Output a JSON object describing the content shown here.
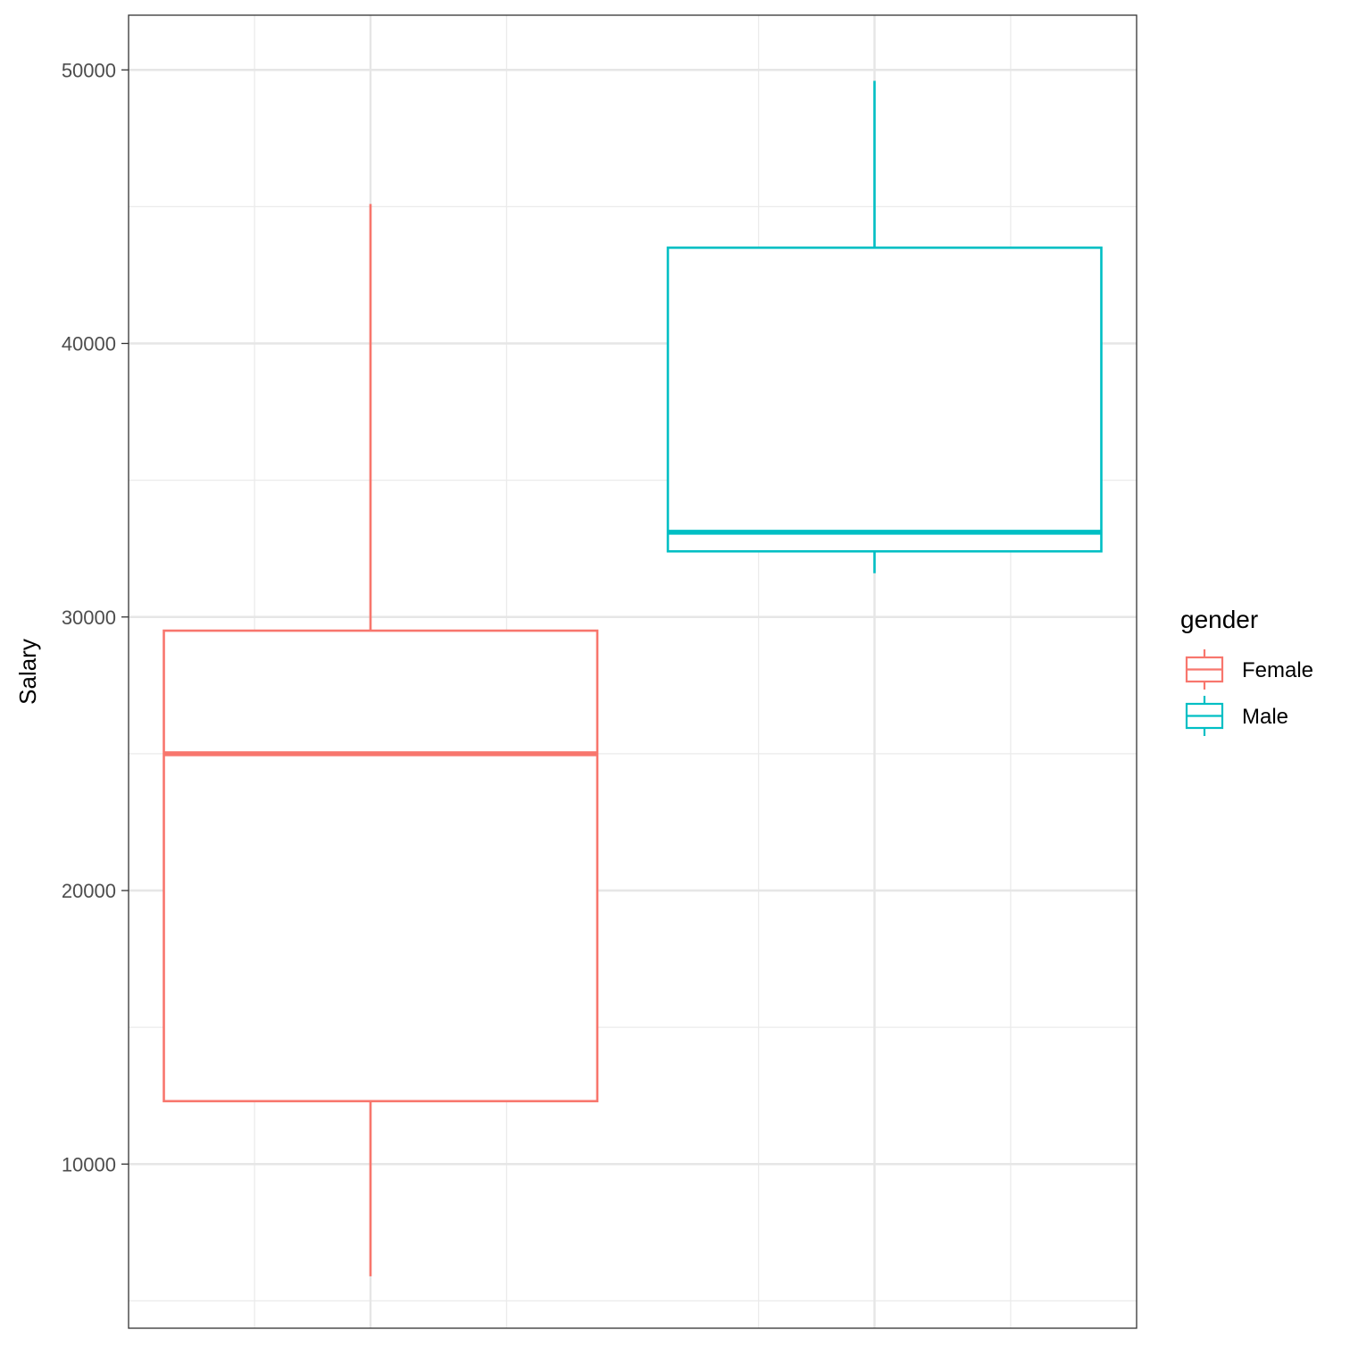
{
  "chart_data": {
    "type": "boxplot",
    "title": "",
    "xlabel": "",
    "ylabel": "Salary",
    "ylim": [
      4000,
      52000
    ],
    "y_ticks": [
      10000,
      20000,
      30000,
      40000,
      50000
    ],
    "y_tick_labels": [
      "10000",
      "20000",
      "30000",
      "40000",
      "50000"
    ],
    "grid": true,
    "legend": {
      "title": "gender",
      "position": "right",
      "entries": [
        "Female",
        "Male"
      ]
    },
    "series": [
      {
        "name": "Female",
        "color": "#F8766D",
        "whisker_low": 5900,
        "q1": 12300,
        "median": 25000,
        "q3": 29500,
        "whisker_high": 45100
      },
      {
        "name": "Male",
        "color": "#00BFC4",
        "whisker_low": 31600,
        "q1": 32400,
        "median": 33100,
        "q3": 43500,
        "whisker_high": 49600
      }
    ]
  }
}
